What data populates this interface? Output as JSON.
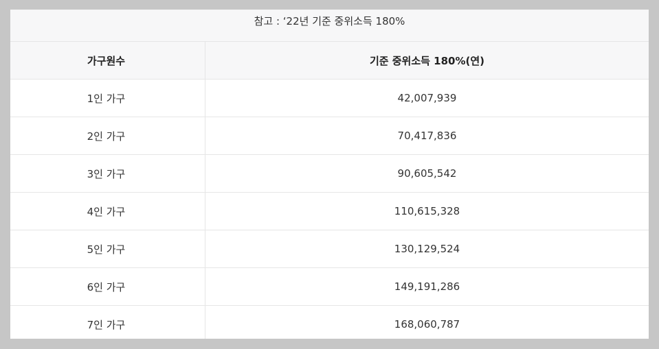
{
  "caption": "참고 : ‘22년 기준 중위소득 180%",
  "table": {
    "headers": [
      "가구원수",
      "기준 중위소득 180%(연)"
    ],
    "rows": [
      [
        "1인 가구",
        "42,007,939"
      ],
      [
        "2인 가구",
        "70,417,836"
      ],
      [
        "3인 가구",
        "90,605,542"
      ],
      [
        "4인 가구",
        "110,615,328"
      ],
      [
        "5인 가구",
        "130,129,524"
      ],
      [
        "6인 가구",
        "149,191,286"
      ],
      [
        "7인 가구",
        "168,060,787"
      ]
    ]
  }
}
